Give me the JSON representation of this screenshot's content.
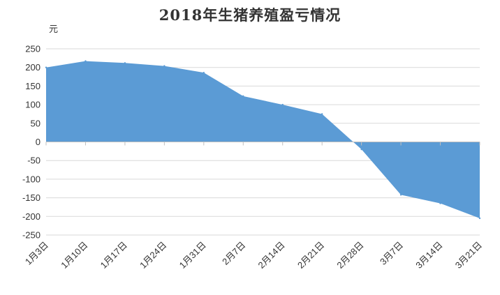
{
  "chart_data": {
    "type": "area",
    "title": "2018年生猪养殖盈亏情况",
    "ylabel": "元",
    "xlabel": "",
    "categories": [
      "1月3日",
      "1月10日",
      "1月17日",
      "1月24日",
      "1月31日",
      "2月7日",
      "2月14日",
      "2月21日",
      "2月28日",
      "3月7日",
      "3月14日",
      "3月21日"
    ],
    "values": [
      200,
      217,
      212,
      204,
      186,
      123,
      100,
      75,
      -20,
      -142,
      -165,
      -205
    ],
    "ylim": [
      -250,
      250
    ],
    "yticks": [
      250,
      200,
      150,
      100,
      50,
      0,
      -50,
      -100,
      -150,
      -200,
      -250
    ],
    "grid": true,
    "legend": "none",
    "colors": {
      "area": "#5b9bd5",
      "grid": "#d9d9d9",
      "axis": "#bfbfbf",
      "text": "#333333"
    }
  }
}
